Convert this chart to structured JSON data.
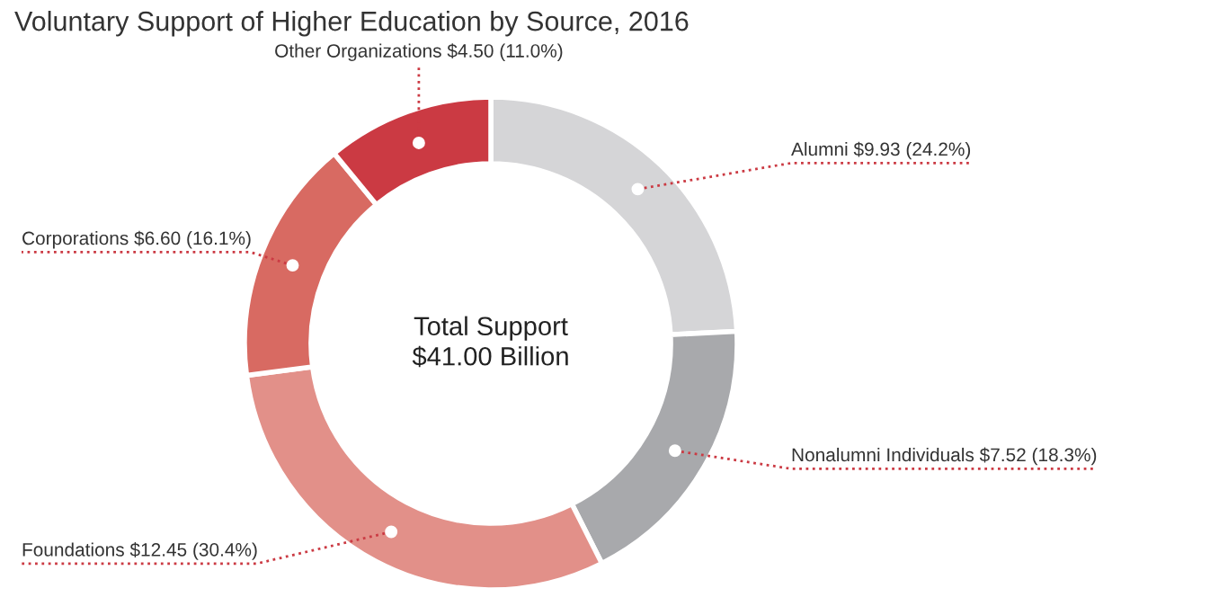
{
  "chart_data": {
    "type": "donut",
    "title": "Voluntary Support of Higher Education by Source, 2016",
    "categories": [
      "Alumni",
      "Nonalumni Individuals",
      "Foundations",
      "Corporations",
      "Other Organizations"
    ],
    "values": [
      9.93,
      7.52,
      12.45,
      6.6,
      4.5
    ],
    "value_labels": [
      "$9.93 (24.2%)",
      "$7.52 (18.3%)",
      "$12.45 (30.4%)",
      "$6.60 (16.1%)",
      "$4.50 (11.0%)"
    ],
    "colors": [
      "#d5d5d7",
      "#a8a9ac",
      "#e29089",
      "#d86a62",
      "#cb3a43"
    ],
    "annotations": [
      "Total Support\n$41.00 Billion"
    ],
    "legend": false
  }
}
